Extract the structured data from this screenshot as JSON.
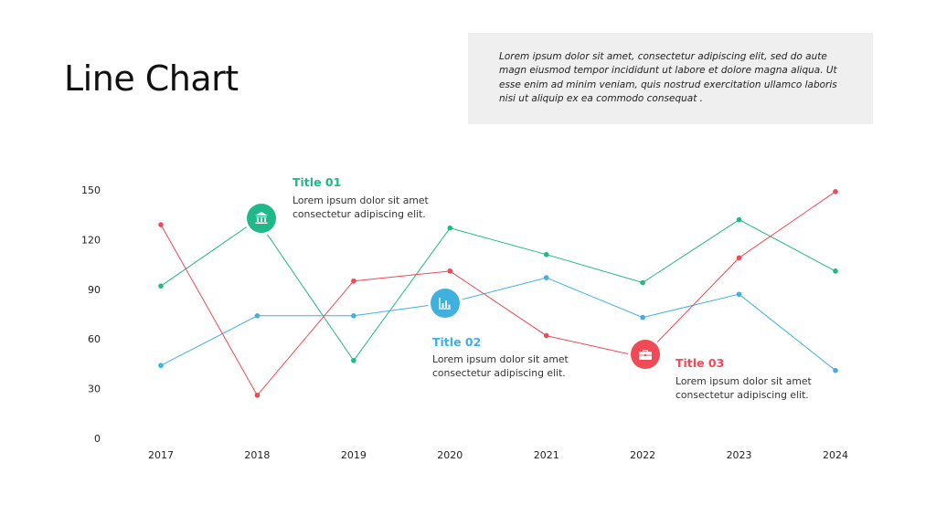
{
  "page_title": "Line Chart",
  "description": "Lorem ipsum dolor sit amet, consectetur adipiscing elit, sed do aute magn eiusmod tempor incididunt ut labore et dolore magna aliqua. Ut esse  enim ad minim  veniam,  quis nostrud exercitation ullamco laboris nisi ut aliquip ex ea commodo  consequat .",
  "annotations": [
    {
      "title": "Title 01",
      "text": "Lorem ipsum dolor sit amet consectetur adipiscing  elit.",
      "color": "#1fb889",
      "icon": "bank-icon"
    },
    {
      "title": "Title 02",
      "text": "Lorem ipsum dolor sit amet consectetur adipiscing  elit.",
      "color": "#3fb1de",
      "icon": "bar-chart-icon"
    },
    {
      "title": "Title 03",
      "text": "Lorem ipsum dolor sit amet consectetur adipiscing  elit.",
      "color": "#ef4a55",
      "icon": "briefcase-icon"
    }
  ],
  "chart_data": {
    "type": "line",
    "x": [
      "2017",
      "2018",
      "2019",
      "2020",
      "2021",
      "2022",
      "2023",
      "2024"
    ],
    "ylim": [
      0,
      150
    ],
    "yticks": [
      0,
      30,
      60,
      90,
      120,
      150
    ],
    "grid": false,
    "legend": "none",
    "series": [
      {
        "color": "#1fb889",
        "values": [
          92,
          132,
          47,
          127,
          111,
          94,
          132,
          101
        ]
      },
      {
        "color": "#3fb1de",
        "values": [
          44,
          74,
          74,
          82,
          97,
          73,
          87,
          41
        ]
      },
      {
        "color": "#ef4a55",
        "values": [
          129,
          26,
          95,
          101,
          62,
          49,
          109,
          149
        ]
      }
    ]
  }
}
